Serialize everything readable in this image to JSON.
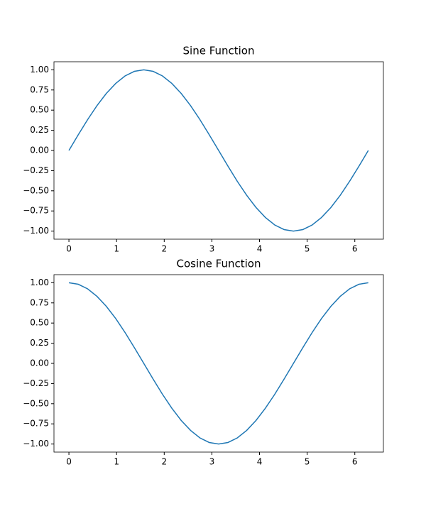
{
  "chart_data": [
    {
      "type": "line",
      "title": "Sine Function",
      "color": "#1f77b4",
      "x": [
        0,
        0.196,
        0.393,
        0.589,
        0.785,
        0.982,
        1.178,
        1.374,
        1.571,
        1.767,
        1.963,
        2.16,
        2.356,
        2.553,
        2.749,
        2.945,
        3.142,
        3.338,
        3.534,
        3.731,
        3.927,
        4.123,
        4.32,
        4.516,
        4.712,
        4.909,
        5.105,
        5.301,
        5.498,
        5.694,
        5.89,
        6.087,
        6.283
      ],
      "values": [
        0,
        0.195,
        0.383,
        0.556,
        0.707,
        0.831,
        0.924,
        0.981,
        1,
        0.981,
        0.924,
        0.831,
        0.707,
        0.556,
        0.383,
        0.195,
        0,
        -0.195,
        -0.383,
        -0.556,
        -0.707,
        -0.831,
        -0.924,
        -0.981,
        -1,
        -0.981,
        -0.924,
        -0.831,
        -0.707,
        -0.556,
        -0.383,
        -0.195,
        0
      ],
      "xlim": [
        -0.314,
        6.6
      ],
      "xticks": [
        0,
        1,
        2,
        3,
        4,
        5,
        6
      ],
      "ylim": [
        -1.1,
        1.1
      ],
      "yticks": [
        {
          "value": -1,
          "label": "−1.00"
        },
        {
          "value": -0.75,
          "label": "−0.75"
        },
        {
          "value": -0.5,
          "label": "−0.50"
        },
        {
          "value": -0.25,
          "label": "−0.25"
        },
        {
          "value": 0,
          "label": "0.00"
        },
        {
          "value": 0.25,
          "label": "0.25"
        },
        {
          "value": 0.5,
          "label": "0.50"
        },
        {
          "value": 0.75,
          "label": "0.75"
        },
        {
          "value": 1,
          "label": "1.00"
        }
      ]
    },
    {
      "type": "line",
      "title": "Cosine Function",
      "color": "#1f77b4",
      "x": [
        0,
        0.196,
        0.393,
        0.589,
        0.785,
        0.982,
        1.178,
        1.374,
        1.571,
        1.767,
        1.963,
        2.16,
        2.356,
        2.553,
        2.749,
        2.945,
        3.142,
        3.338,
        3.534,
        3.731,
        3.927,
        4.123,
        4.32,
        4.516,
        4.712,
        4.909,
        5.105,
        5.301,
        5.498,
        5.694,
        5.89,
        6.087,
        6.283
      ],
      "values": [
        1,
        0.981,
        0.924,
        0.831,
        0.707,
        0.556,
        0.383,
        0.195,
        0,
        -0.195,
        -0.383,
        -0.556,
        -0.707,
        -0.831,
        -0.924,
        -0.981,
        -1,
        -0.981,
        -0.924,
        -0.831,
        -0.707,
        -0.556,
        -0.383,
        -0.195,
        0,
        0.195,
        0.383,
        0.556,
        0.707,
        0.831,
        0.924,
        0.981,
        1
      ],
      "xlim": [
        -0.314,
        6.6
      ],
      "xticks": [
        0,
        1,
        2,
        3,
        4,
        5,
        6
      ],
      "ylim": [
        -1.1,
        1.1
      ],
      "yticks": [
        {
          "value": -1,
          "label": "−1.00"
        },
        {
          "value": -0.75,
          "label": "−0.75"
        },
        {
          "value": -0.5,
          "label": "−0.50"
        },
        {
          "value": -0.25,
          "label": "−0.25"
        },
        {
          "value": 0,
          "label": "0.00"
        },
        {
          "value": 0.25,
          "label": "0.25"
        },
        {
          "value": 0.5,
          "label": "0.50"
        },
        {
          "value": 0.75,
          "label": "0.75"
        },
        {
          "value": 1,
          "label": "1.00"
        }
      ]
    }
  ]
}
